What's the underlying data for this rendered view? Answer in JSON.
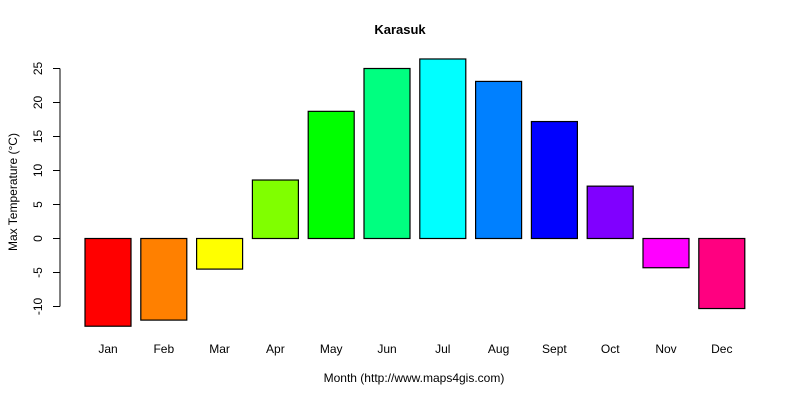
{
  "chart_data": {
    "type": "bar",
    "title": "Karasuk",
    "xlabel": "Month (http://www.maps4gis.com)",
    "ylabel": "Max Temperature (°C)",
    "categories": [
      "Jan",
      "Feb",
      "Mar",
      "Apr",
      "May",
      "Jun",
      "Jul",
      "Aug",
      "Sept",
      "Oct",
      "Nov",
      "Dec"
    ],
    "values": [
      -12.9,
      -12.0,
      -4.5,
      8.6,
      18.7,
      25.0,
      26.4,
      23.1,
      17.2,
      7.7,
      -4.3,
      -10.3
    ],
    "colors": [
      "#FF0000",
      "#FF8000",
      "#FFFF00",
      "#80FF00",
      "#00FF00",
      "#00FF80",
      "#00FFFF",
      "#0080FF",
      "#0000FF",
      "#8000FF",
      "#FF00FF",
      "#FF0080"
    ],
    "yticks": [
      -10,
      -5,
      0,
      5,
      10,
      15,
      20,
      25
    ],
    "ylim": [
      -13,
      26.5
    ],
    "grid": false,
    "legend": null
  }
}
